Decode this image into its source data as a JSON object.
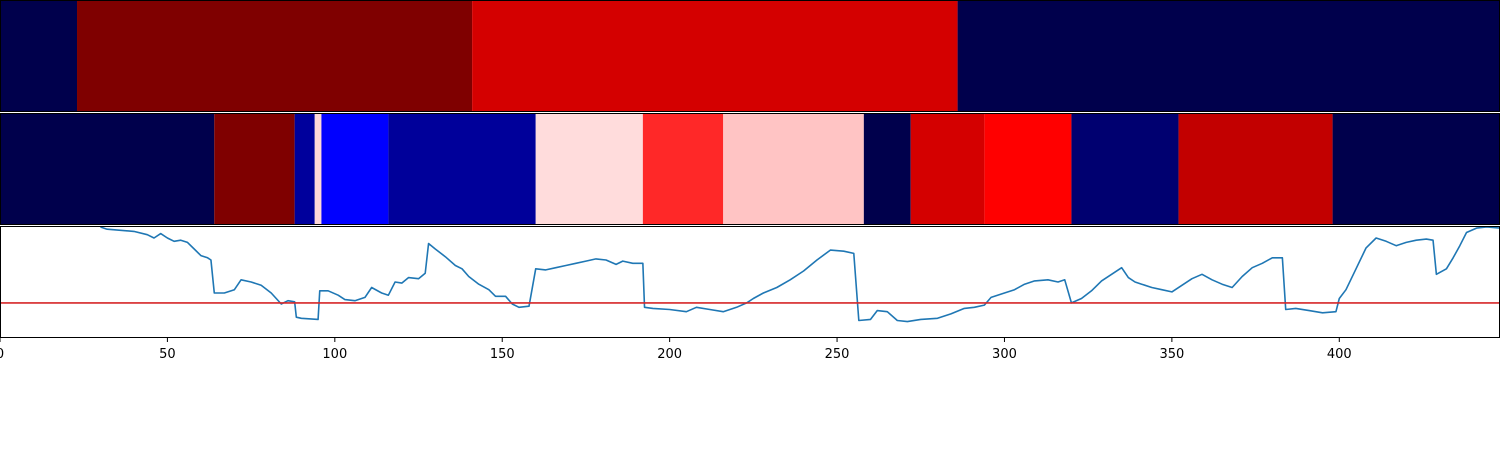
{
  "chart_data": [
    {
      "type": "heatmap",
      "name": "segment-band-1",
      "segments": [
        {
          "start": 0,
          "end": 23,
          "color": "#00004c"
        },
        {
          "start": 23,
          "end": 141,
          "color": "#7f0000"
        },
        {
          "start": 141,
          "end": 286,
          "color": "#d40000"
        },
        {
          "start": 286,
          "end": 448,
          "color": "#00004c"
        }
      ]
    },
    {
      "type": "heatmap",
      "name": "segment-band-2",
      "segments": [
        {
          "start": 0,
          "end": 64,
          "color": "#00004c"
        },
        {
          "start": 64,
          "end": 88,
          "color": "#7f0000"
        },
        {
          "start": 88,
          "end": 94,
          "color": "#00009c"
        },
        {
          "start": 94,
          "end": 96,
          "color": "#ffd8d8"
        },
        {
          "start": 96,
          "end": 116,
          "color": "#0000ff"
        },
        {
          "start": 116,
          "end": 160,
          "color": "#00009a"
        },
        {
          "start": 160,
          "end": 192,
          "color": "#ffdcdc"
        },
        {
          "start": 192,
          "end": 216,
          "color": "#ff2828"
        },
        {
          "start": 216,
          "end": 258,
          "color": "#ffc4c4"
        },
        {
          "start": 258,
          "end": 272,
          "color": "#00004c"
        },
        {
          "start": 272,
          "end": 294,
          "color": "#d40000"
        },
        {
          "start": 294,
          "end": 320,
          "color": "#ff0000"
        },
        {
          "start": 320,
          "end": 352,
          "color": "#000070"
        },
        {
          "start": 352,
          "end": 398,
          "color": "#c20000"
        },
        {
          "start": 398,
          "end": 448,
          "color": "#00004c"
        }
      ]
    },
    {
      "type": "line",
      "name": "signal-line",
      "xlim": [
        0,
        448
      ],
      "ylim": [
        0,
        1
      ],
      "x_ticks": [
        0,
        50,
        100,
        150,
        200,
        250,
        300,
        350,
        400
      ],
      "x_tick_labels": [
        "0",
        "50",
        "100",
        "150",
        "200",
        "250",
        "300",
        "350",
        "400"
      ],
      "threshold": 0.31,
      "line_color": "#1f77b4",
      "threshold_color": "#d62728",
      "series": [
        {
          "name": "signal",
          "points": [
            [
              30,
              1.0
            ],
            [
              32,
              0.98
            ],
            [
              40,
              0.96
            ],
            [
              44,
              0.93
            ],
            [
              46,
              0.9
            ],
            [
              48,
              0.94
            ],
            [
              50,
              0.9
            ],
            [
              52,
              0.87
            ],
            [
              54,
              0.88
            ],
            [
              56,
              0.86
            ],
            [
              58,
              0.8
            ],
            [
              60,
              0.74
            ],
            [
              62,
              0.72
            ],
            [
              63,
              0.7
            ],
            [
              64,
              0.4
            ],
            [
              67,
              0.4
            ],
            [
              70,
              0.43
            ],
            [
              72,
              0.52
            ],
            [
              75,
              0.5
            ],
            [
              78,
              0.47
            ],
            [
              81,
              0.4
            ],
            [
              84,
              0.3
            ],
            [
              86,
              0.33
            ],
            [
              88,
              0.32
            ],
            [
              88.5,
              0.18
            ],
            [
              90,
              0.17
            ],
            [
              95,
              0.16
            ],
            [
              95.5,
              0.42
            ],
            [
              98,
              0.42
            ],
            [
              101,
              0.38
            ],
            [
              103,
              0.34
            ],
            [
              106,
              0.33
            ],
            [
              109,
              0.36
            ],
            [
              111,
              0.45
            ],
            [
              114,
              0.4
            ],
            [
              116,
              0.38
            ],
            [
              118,
              0.5
            ],
            [
              120,
              0.49
            ],
            [
              122,
              0.54
            ],
            [
              125,
              0.53
            ],
            [
              127,
              0.58
            ],
            [
              128,
              0.85
            ],
            [
              130,
              0.8
            ],
            [
              133,
              0.73
            ],
            [
              136,
              0.65
            ],
            [
              138,
              0.62
            ],
            [
              140,
              0.55
            ],
            [
              143,
              0.48
            ],
            [
              146,
              0.43
            ],
            [
              148,
              0.37
            ],
            [
              151,
              0.37
            ],
            [
              153,
              0.3
            ],
            [
              155,
              0.27
            ],
            [
              158,
              0.28
            ],
            [
              160,
              0.62
            ],
            [
              163,
              0.61
            ],
            [
              166,
              0.63
            ],
            [
              169,
              0.65
            ],
            [
              172,
              0.67
            ],
            [
              175,
              0.69
            ],
            [
              178,
              0.71
            ],
            [
              181,
              0.7
            ],
            [
              184,
              0.66
            ],
            [
              186,
              0.69
            ],
            [
              189,
              0.67
            ],
            [
              192,
              0.67
            ],
            [
              192.5,
              0.27
            ],
            [
              195,
              0.26
            ],
            [
              200,
              0.25
            ],
            [
              205,
              0.23
            ],
            [
              208,
              0.27
            ],
            [
              212,
              0.25
            ],
            [
              216,
              0.23
            ],
            [
              220,
              0.27
            ],
            [
              223,
              0.31
            ],
            [
              225,
              0.35
            ],
            [
              228,
              0.4
            ],
            [
              232,
              0.45
            ],
            [
              236,
              0.52
            ],
            [
              240,
              0.6
            ],
            [
              244,
              0.7
            ],
            [
              248,
              0.79
            ],
            [
              252,
              0.78
            ],
            [
              255,
              0.76
            ],
            [
              256.5,
              0.15
            ],
            [
              260,
              0.16
            ],
            [
              262,
              0.24
            ],
            [
              265,
              0.23
            ],
            [
              268,
              0.15
            ],
            [
              271,
              0.14
            ],
            [
              275,
              0.16
            ],
            [
              280,
              0.17
            ],
            [
              284,
              0.21
            ],
            [
              288,
              0.26
            ],
            [
              291,
              0.27
            ],
            [
              294,
              0.29
            ],
            [
              296,
              0.36
            ],
            [
              300,
              0.4
            ],
            [
              303,
              0.43
            ],
            [
              306,
              0.48
            ],
            [
              309,
              0.51
            ],
            [
              313,
              0.52
            ],
            [
              316,
              0.5
            ],
            [
              318,
              0.52
            ],
            [
              320,
              0.31
            ],
            [
              323,
              0.35
            ],
            [
              326,
              0.42
            ],
            [
              329,
              0.51
            ],
            [
              332,
              0.57
            ],
            [
              335,
              0.63
            ],
            [
              337,
              0.54
            ],
            [
              339,
              0.5
            ],
            [
              341,
              0.48
            ],
            [
              344,
              0.45
            ],
            [
              347,
              0.43
            ],
            [
              350,
              0.41
            ],
            [
              353,
              0.47
            ],
            [
              356,
              0.53
            ],
            [
              359,
              0.57
            ],
            [
              362,
              0.52
            ],
            [
              365,
              0.48
            ],
            [
              368,
              0.45
            ],
            [
              371,
              0.55
            ],
            [
              374,
              0.63
            ],
            [
              377,
              0.67
            ],
            [
              380,
              0.72
            ],
            [
              383,
              0.72
            ],
            [
              384,
              0.25
            ],
            [
              387,
              0.26
            ],
            [
              391,
              0.24
            ],
            [
              395,
              0.22
            ],
            [
              399,
              0.23
            ],
            [
              400,
              0.35
            ],
            [
              402,
              0.43
            ],
            [
              405,
              0.62
            ],
            [
              408,
              0.81
            ],
            [
              411,
              0.9
            ],
            [
              414,
              0.87
            ],
            [
              417,
              0.83
            ],
            [
              420,
              0.86
            ],
            [
              423,
              0.88
            ],
            [
              426,
              0.89
            ],
            [
              428,
              0.88
            ],
            [
              429,
              0.57
            ],
            [
              432,
              0.62
            ],
            [
              434,
              0.72
            ],
            [
              436,
              0.83
            ],
            [
              438,
              0.95
            ],
            [
              441,
              0.99
            ],
            [
              444,
              1.0
            ],
            [
              448,
              0.99
            ]
          ]
        }
      ]
    }
  ]
}
